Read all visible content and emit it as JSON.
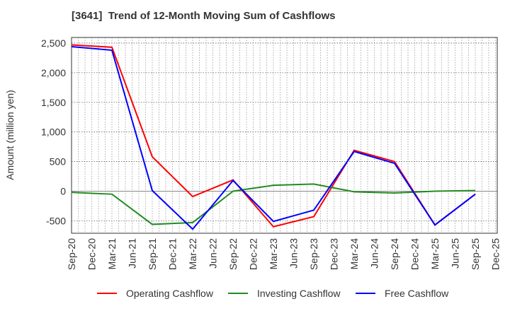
{
  "chart_data": {
    "type": "line",
    "title": "[3641]  Trend of 12-Month Moving Sum of Cashflows",
    "xlabel": "",
    "ylabel": "Amount (million yen)",
    "ylim": [
      -710,
      2595
    ],
    "yticks": [
      2500,
      2000,
      1500,
      1000,
      500,
      0,
      -500
    ],
    "ytick_labels": [
      "2,500",
      "2,000",
      "1,500",
      "1,000",
      "500",
      "0",
      "-500"
    ],
    "xtick_labels": [
      "Sep-20",
      "Dec-20",
      "Mar-21",
      "Jun-21",
      "Sep-21",
      "Dec-21",
      "Mar-22",
      "Jun-22",
      "Sep-22",
      "Dec-22",
      "Mar-23",
      "Jun-23",
      "Sep-23",
      "Dec-23",
      "Mar-24",
      "Jun-24",
      "Sep-24",
      "Dec-24",
      "Mar-25",
      "Jun-25",
      "Sep-25",
      "Dec-25"
    ],
    "grid": true,
    "legend_position": "bottom",
    "x": [
      "Sep-20",
      "Mar-21",
      "Sep-21",
      "Mar-22",
      "Sep-22",
      "Mar-23",
      "Sep-23",
      "Mar-24",
      "Sep-24",
      "Mar-25",
      "Sep-25"
    ],
    "series": [
      {
        "name": "Operating Cashflow",
        "color": "#ff0000",
        "values": [
          2470,
          2430,
          580,
          -90,
          190,
          -600,
          -430,
          690,
          500,
          -570,
          -50
        ]
      },
      {
        "name": "Investing Cashflow",
        "color": "#228b22",
        "values": [
          -20,
          -50,
          -560,
          -530,
          0,
          100,
          120,
          -10,
          -30,
          0,
          10
        ]
      },
      {
        "name": "Free Cashflow",
        "color": "#0000ff",
        "values": [
          2440,
          2380,
          10,
          -640,
          180,
          -510,
          -320,
          670,
          470,
          -570,
          -50
        ]
      }
    ]
  }
}
